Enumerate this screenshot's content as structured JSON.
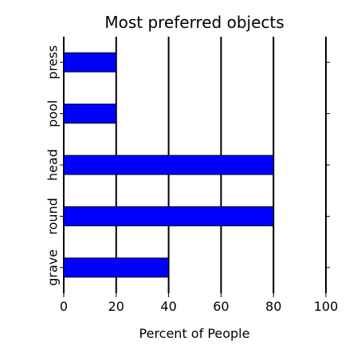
{
  "chart_data": {
    "type": "bar",
    "orientation": "horizontal",
    "title": "Most preferred objects",
    "xlabel": "Percent of People",
    "ylabel": "",
    "categories": [
      "grave",
      "round",
      "head",
      "pool",
      "press"
    ],
    "values": [
      40,
      80,
      80,
      20,
      20
    ],
    "xlim": [
      0,
      100
    ],
    "xticks": [
      0,
      20,
      40,
      60,
      80,
      100
    ],
    "grid": "vertical",
    "bar_color": "#0000ff",
    "bar_edge_color": "#000000",
    "legend": "none"
  }
}
